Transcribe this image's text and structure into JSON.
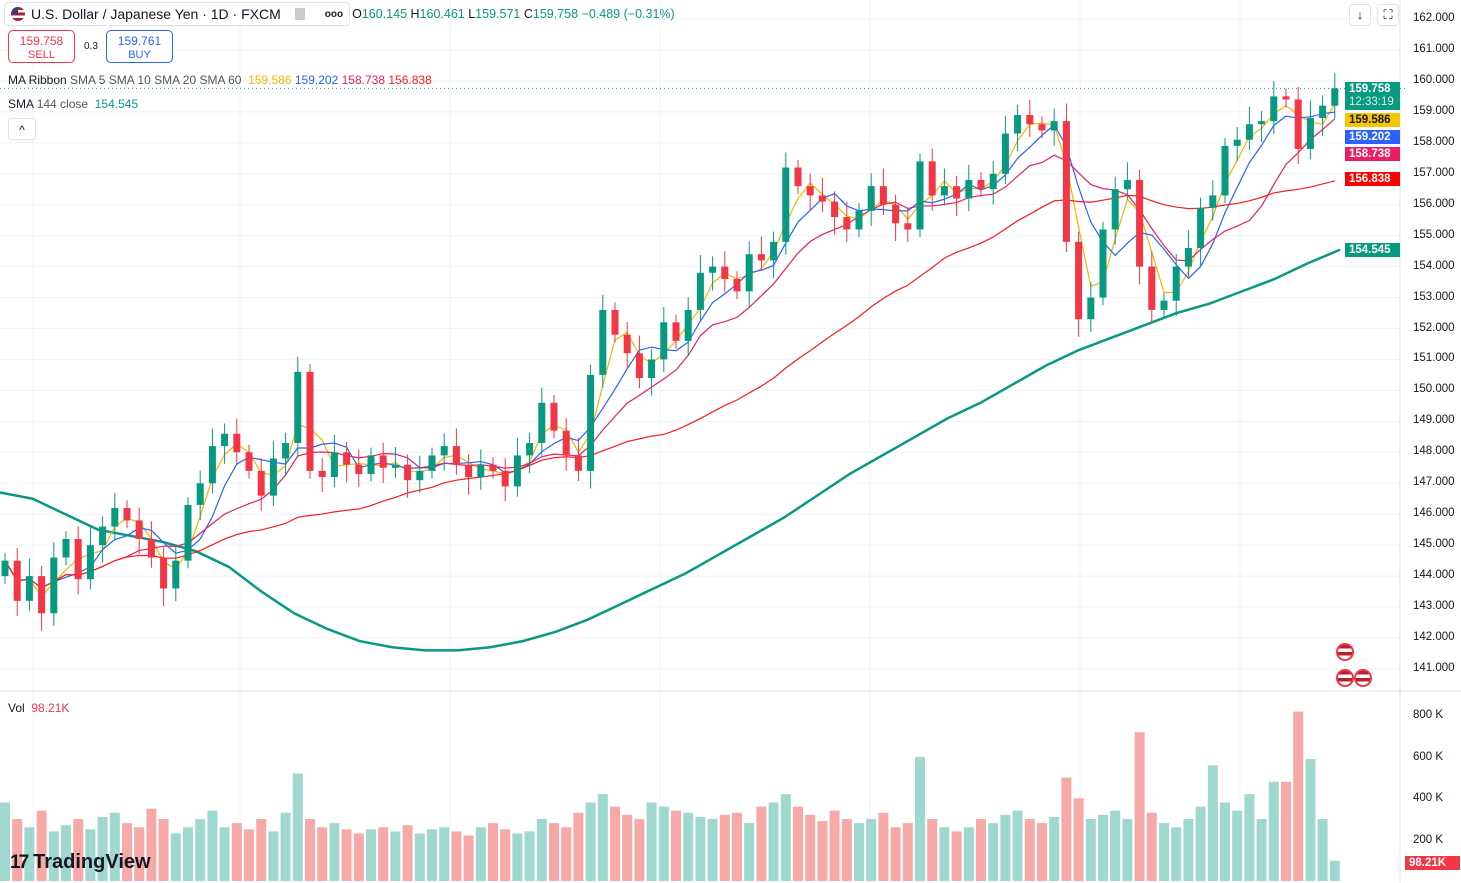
{
  "header": {
    "symbol": "U.S. Dollar / Japanese Yen · 1D · FXCM",
    "more": "ooo",
    "o_label": "O",
    "o": "160.145",
    "h_label": "H",
    "h": "160.461",
    "l_label": "L",
    "l": "159.571",
    "c_label": "C",
    "c": "159.758",
    "change": "−0.489 (−0.31%)"
  },
  "trade": {
    "sell_price": "159.758",
    "sell_label": "SELL",
    "spread": "0.3",
    "buy_price": "159.761",
    "buy_label": "BUY"
  },
  "legend": {
    "ribbon_name": "MA Ribbon",
    "ribbon_params": "SMA 5 SMA 10 SMA 20 SMA 60",
    "sma5": "159.586",
    "sma10": "159.202",
    "sma20": "158.738",
    "sma60": "156.838",
    "sma144_name": "SMA",
    "sma144_params": "144 close",
    "sma144": "154.545",
    "collapse": "^"
  },
  "toolbar": {
    "scroll_icon": "↓",
    "fullscreen_icon": "⛶"
  },
  "price_axis": [
    "162.000",
    "161.000",
    "160.000",
    "159.000",
    "158.000",
    "157.000",
    "156.000",
    "155.000",
    "154.000",
    "153.000",
    "152.000",
    "151.000",
    "150.000",
    "149.000",
    "148.000",
    "147.000",
    "146.000",
    "145.000",
    "144.000",
    "143.000",
    "142.000",
    "141.000"
  ],
  "price_labels": {
    "last": "159.758",
    "countdown": "12:33:19",
    "sma5": "159.586",
    "sma10": "159.202",
    "sma20": "158.738",
    "sma60": "156.838",
    "sma144": "154.545"
  },
  "colors": {
    "up": "#089981",
    "down": "#f23645",
    "sma5": "#f7b500",
    "sma10": "#2962ff",
    "sma20": "#e91e63",
    "sma60": "#ff1a1a",
    "sma144": "#089981"
  },
  "volume": {
    "label": "Vol",
    "value": "98.21K",
    "axis": [
      "800 K",
      "600 K",
      "400 K",
      "200 K"
    ],
    "last_label": "98.21K"
  },
  "logo": "TradingView",
  "chart_data": {
    "type": "candlestick",
    "ylim": [
      141,
      162
    ],
    "first_open": 144.0,
    "closes": [
      144.5,
      143.2,
      144.0,
      142.8,
      144.6,
      145.2,
      143.9,
      145.0,
      145.6,
      146.2,
      145.8,
      145.2,
      144.6,
      143.6,
      144.5,
      146.3,
      147.0,
      148.2,
      148.6,
      148.0,
      147.4,
      146.6,
      147.8,
      148.3,
      150.6,
      147.4,
      147.2,
      148.0,
      147.6,
      147.3,
      147.9,
      147.5,
      147.6,
      147.1,
      147.4,
      147.9,
      148.2,
      147.6,
      147.2,
      147.6,
      147.4,
      146.9,
      147.9,
      148.3,
      149.6,
      148.7,
      147.9,
      147.4,
      150.5,
      152.6,
      151.8,
      151.2,
      150.4,
      151.0,
      152.2,
      151.6,
      152.6,
      153.8,
      154.0,
      153.6,
      153.2,
      154.4,
      154.2,
      154.8,
      157.2,
      156.6,
      156.3,
      156.1,
      155.6,
      155.2,
      155.8,
      156.6,
      156.0,
      155.4,
      155.2,
      157.4,
      156.3,
      156.6,
      156.2,
      156.8,
      156.5,
      157.0,
      158.3,
      158.9,
      158.6,
      158.4,
      158.7,
      154.8,
      152.3,
      153.0,
      155.2,
      156.5,
      156.8,
      154.0,
      152.6,
      152.9,
      154.0,
      154.6,
      155.9,
      156.3,
      157.9,
      158.1,
      158.6,
      158.7,
      159.5,
      159.4,
      157.8,
      158.8,
      159.2,
      159.758
    ],
    "volumes_k": [
      380,
      300,
      260,
      340,
      240,
      270,
      300,
      250,
      310,
      330,
      280,
      260,
      350,
      300,
      230,
      260,
      300,
      340,
      260,
      280,
      250,
      300,
      240,
      330,
      520,
      300,
      260,
      280,
      250,
      230,
      250,
      260,
      240,
      270,
      230,
      250,
      260,
      240,
      220,
      260,
      280,
      250,
      230,
      240,
      300,
      280,
      260,
      330,
      380,
      420,
      360,
      320,
      300,
      380,
      360,
      340,
      330,
      310,
      300,
      320,
      330,
      280,
      360,
      380,
      420,
      360,
      320,
      290,
      340,
      300,
      280,
      300,
      330,
      260,
      280,
      600,
      300,
      260,
      240,
      260,
      300,
      280,
      320,
      340,
      300,
      280,
      310,
      500,
      400,
      300,
      320,
      340,
      300,
      720,
      330,
      280,
      260,
      300,
      360,
      560,
      380,
      340,
      420,
      300,
      480,
      480,
      820,
      590,
      300,
      98
    ],
    "sma144": [
      146.7,
      146.5,
      146.0,
      145.5,
      145.3,
      145.1,
      144.8,
      144.3,
      143.5,
      142.8,
      142.3,
      141.9,
      141.7,
      141.6,
      141.6,
      141.7,
      141.9,
      142.2,
      142.6,
      143.1,
      143.6,
      144.1,
      144.7,
      145.3,
      145.9,
      146.6,
      147.3,
      147.9,
      148.5,
      149.1,
      149.6,
      150.2,
      150.8,
      151.3,
      151.7,
      152.1,
      152.5,
      152.8,
      153.2,
      153.6,
      154.1,
      154.545
    ],
    "sma_periods": [
      5,
      10,
      20,
      60
    ]
  }
}
